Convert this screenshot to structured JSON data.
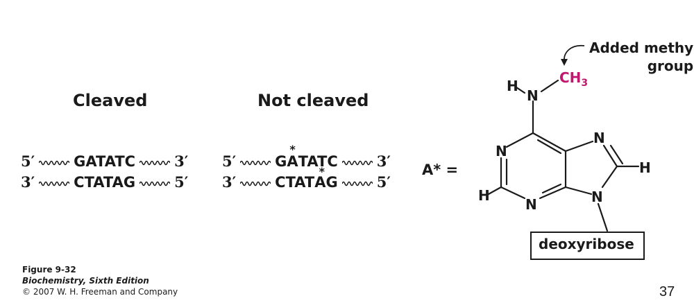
{
  "headings": {
    "cleaved": "Cleaved",
    "not_cleaved": "Not cleaved"
  },
  "cleaved": {
    "top": {
      "left": "5′",
      "seq": "GATATC",
      "right": "3′"
    },
    "bottom": {
      "left": "3′",
      "seq": "CTATAG",
      "right": "5′"
    }
  },
  "not_cleaved": {
    "top": {
      "left": "5′",
      "seq_a": "G",
      "seq_mark": "A",
      "seq_b": "TATC",
      "right": "3′"
    },
    "bottom": {
      "left": "3′",
      "seq_a": "CTAT",
      "seq_mark": "A",
      "seq_b": "G",
      "right": "5′"
    },
    "mark": "*"
  },
  "equation": "A* =",
  "molecule": {
    "callout": "Added methy\ngroup",
    "ch3": "CH",
    "ch3_sub": "3",
    "atoms": {
      "h": "H",
      "n": "N"
    },
    "box": "deoxyribose",
    "methyl_color": "#c0186f"
  },
  "caption": {
    "figure": "Figure 9-32",
    "book": "Biochemistry, Sixth Edition",
    "copyright": "© 2007 W. H. Freeman and Company"
  },
  "page_number": "37"
}
